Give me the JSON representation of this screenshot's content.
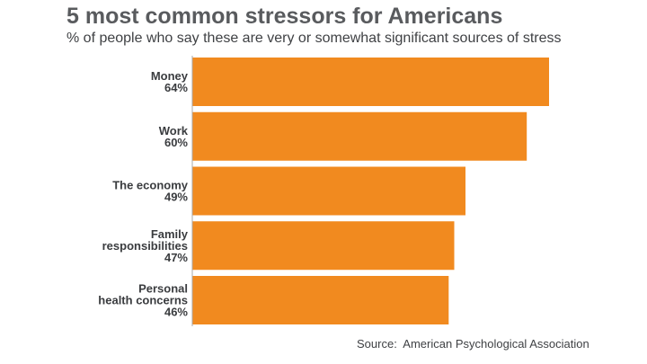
{
  "title": "5 most common stressors for Americans",
  "subtitle": "% of people who say these are very or somewhat significant sources of stress",
  "source": "Source:  American Psychological Association",
  "colors": {
    "bar": "#f18a1f",
    "axis": "#a9a9a9"
  },
  "chart_data": {
    "type": "bar",
    "orientation": "horizontal",
    "title": "5 most common stressors for Americans",
    "subtitle": "% of people who say these are very or somewhat significant sources of stress",
    "categories": [
      "Money",
      "Work",
      "The economy",
      "Family responsibilities",
      "Personal health concerns"
    ],
    "category_label_lines": [
      [
        "Money"
      ],
      [
        "Work"
      ],
      [
        "The economy"
      ],
      [
        "Family",
        "responsibilities"
      ],
      [
        "Personal",
        "health concerns"
      ]
    ],
    "values": [
      64,
      60,
      49,
      47,
      46
    ],
    "value_labels": [
      "64%",
      "60%",
      "49%",
      "47%",
      "46%"
    ],
    "unit": "%",
    "xlim": [
      0,
      64
    ],
    "grid": false,
    "legend": "none"
  }
}
